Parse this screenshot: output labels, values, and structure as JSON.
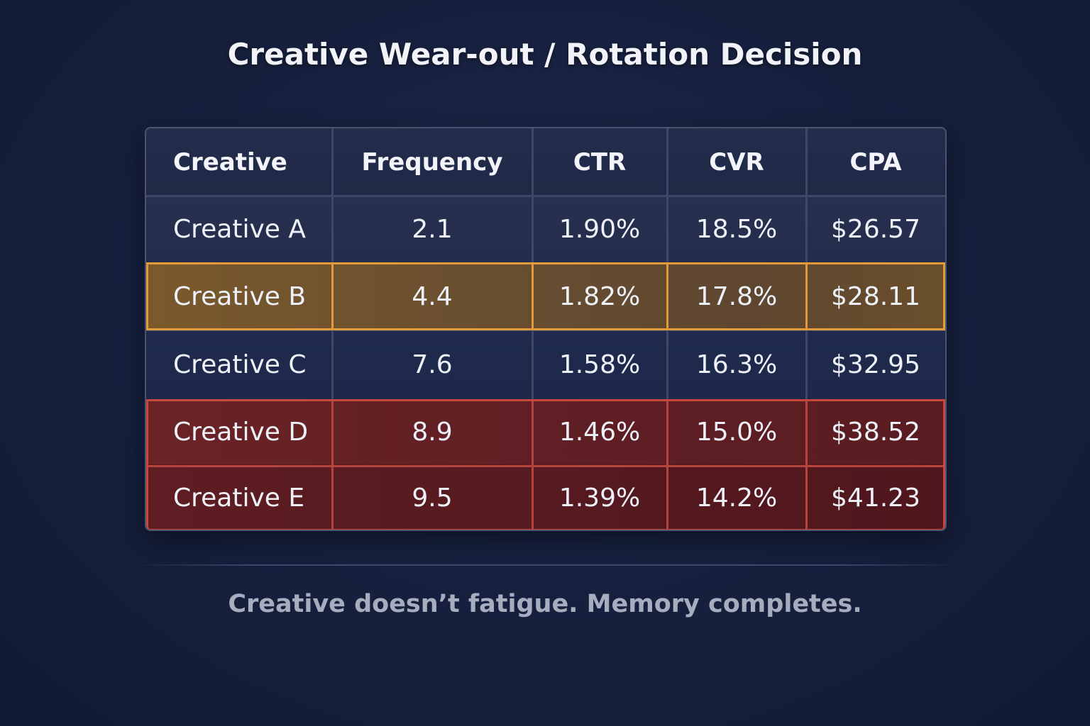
{
  "title": "Creative Wear-out / Rotation Decision",
  "footer": "Creative doesn’t fatigue. Memory completes.",
  "colors": {
    "background": "#17213f",
    "highlight_orange": "#e39a3a",
    "highlight_red": "#c8473e"
  },
  "chart_data": {
    "type": "table",
    "columns": [
      "Creative",
      "Frequency",
      "CTR",
      "CVR",
      "CPA"
    ],
    "rows": [
      [
        "Creative A",
        "2.1",
        "1.90%",
        "18.5%",
        "$26.57"
      ],
      [
        "Creative B",
        "4.4",
        "1.82%",
        "17.8%",
        "$28.11"
      ],
      [
        "Creative C",
        "7.6",
        "1.58%",
        "16.3%",
        "$32.95"
      ],
      [
        "Creative D",
        "8.9",
        "1.46%",
        "15.0%",
        "$38.52"
      ],
      [
        "Creative E",
        "9.5",
        "1.39%",
        "14.2%",
        "$41.23"
      ]
    ],
    "highlights": {
      "orange": [
        "Creative B"
      ],
      "red": [
        "Creative D",
        "Creative E"
      ]
    }
  }
}
